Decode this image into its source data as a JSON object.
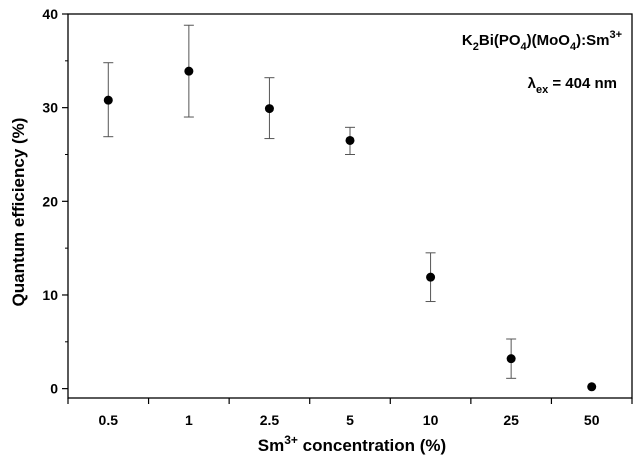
{
  "chart_data": {
    "type": "scatter",
    "title": "",
    "xlabel": {
      "main": "Sm",
      "sup": "3+",
      "rest": " concentration (%)"
    },
    "ylabel": "Quantum efficiency (%)",
    "ylim": [
      -1,
      40
    ],
    "y_ticks": [
      0,
      10,
      20,
      30,
      40
    ],
    "categories": [
      "0.5",
      "1",
      "2.5",
      "5",
      "10",
      "25",
      "50"
    ],
    "series": [
      {
        "values": [
          30.8,
          33.9,
          29.9,
          26.5,
          11.9,
          3.2,
          0.2
        ],
        "err_upper": [
          4.0,
          4.9,
          3.3,
          1.4,
          2.6,
          2.1,
          0
        ],
        "err_lower": [
          3.9,
          4.9,
          3.2,
          1.5,
          2.6,
          2.1,
          0
        ]
      }
    ],
    "grid": false,
    "legend": null,
    "annotations": {
      "compound": [
        {
          "t": "K",
          "s": ""
        },
        {
          "t": "2",
          "s": "sub"
        },
        {
          "t": "Bi(PO",
          "s": ""
        },
        {
          "t": "4",
          "s": "sub"
        },
        {
          "t": ")(MoO",
          "s": ""
        },
        {
          "t": "4",
          "s": "sub"
        },
        {
          "t": "):Sm",
          "s": ""
        },
        {
          "t": "3+",
          "s": "sup"
        }
      ],
      "excitation": [
        {
          "t": "λ",
          "s": ""
        },
        {
          "t": "ex",
          "s": "sub"
        },
        {
          "t": " = 404 nm",
          "s": ""
        }
      ]
    }
  }
}
